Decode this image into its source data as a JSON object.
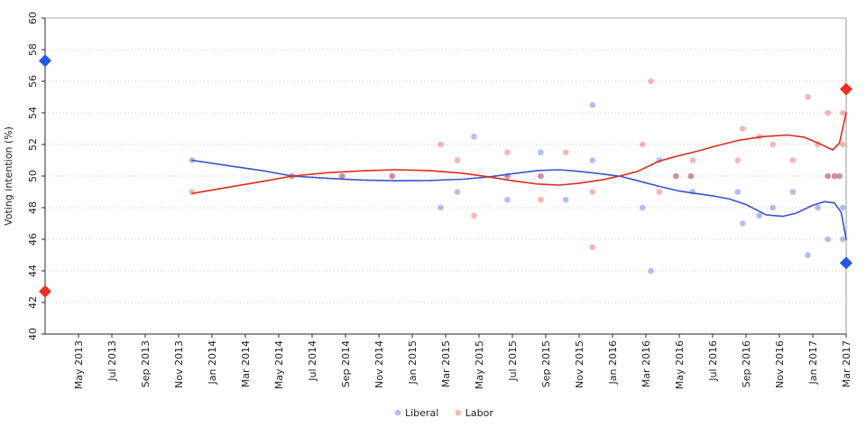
{
  "chart_data": {
    "type": "scatter",
    "title": "",
    "xlabel": "",
    "ylabel": "Voting intention (%)",
    "ylim": [
      40,
      60
    ],
    "yticks": [
      40,
      42,
      44,
      46,
      48,
      50,
      52,
      54,
      56,
      58,
      60
    ],
    "grid": "dotted horizontal",
    "x_unit": "months since Mar 2013",
    "xlim_months": [
      0,
      48
    ],
    "x_ticks": [
      {
        "m": 2,
        "label": "May 2013"
      },
      {
        "m": 4,
        "label": "Jul 2013"
      },
      {
        "m": 6,
        "label": "Sep 2013"
      },
      {
        "m": 8,
        "label": "Nov 2013"
      },
      {
        "m": 10,
        "label": "Jan 2014"
      },
      {
        "m": 12,
        "label": "Mar 2014"
      },
      {
        "m": 14,
        "label": "May 2014"
      },
      {
        "m": 16,
        "label": "Jul 2014"
      },
      {
        "m": 18,
        "label": "Sep 2014"
      },
      {
        "m": 20,
        "label": "Nov 2014"
      },
      {
        "m": 22,
        "label": "Jan 2015"
      },
      {
        "m": 24,
        "label": "Mar 2015"
      },
      {
        "m": 26,
        "label": "May 2015"
      },
      {
        "m": 28,
        "label": "Jul 2015"
      },
      {
        "m": 30,
        "label": "Sep 2015"
      },
      {
        "m": 32,
        "label": "Nov 2015"
      },
      {
        "m": 34,
        "label": "Jan 2016"
      },
      {
        "m": 36,
        "label": "Mar 2016"
      },
      {
        "m": 38,
        "label": "May 2016"
      },
      {
        "m": 40,
        "label": "Jul 2016"
      },
      {
        "m": 42,
        "label": "Sep 2016"
      },
      {
        "m": 44,
        "label": "Nov 2016"
      },
      {
        "m": 46,
        "label": "Jan 2017"
      },
      {
        "m": 48,
        "label": "Mar 2017"
      }
    ],
    "legend": {
      "position": "bottom-center",
      "items": [
        {
          "label": "Liberal",
          "swatch_color": "#4b63de"
        },
        {
          "label": "Labor",
          "swatch_color": "#ef5347"
        }
      ]
    },
    "series": [
      {
        "name": "Liberal",
        "point_color": "#4b63de",
        "point_opacity": 0.42,
        "line_color": "#3a53cf",
        "diamond_color": "#2458ea",
        "points": [
          [
            8.8,
            51
          ],
          [
            14.8,
            50
          ],
          [
            17.8,
            50
          ],
          [
            20.8,
            50
          ],
          [
            23.7,
            48
          ],
          [
            24.7,
            49
          ],
          [
            25.7,
            52.5
          ],
          [
            27.7,
            50
          ],
          [
            27.7,
            48.5
          ],
          [
            29.7,
            51.5
          ],
          [
            29.7,
            50
          ],
          [
            31.2,
            48.5
          ],
          [
            32.8,
            51
          ],
          [
            32.8,
            54.5
          ],
          [
            35.8,
            48
          ],
          [
            36.3,
            44
          ],
          [
            36.8,
            51
          ],
          [
            37.8,
            50
          ],
          [
            38.7,
            50
          ],
          [
            38.8,
            49
          ],
          [
            41.5,
            49
          ],
          [
            41.8,
            47
          ],
          [
            42.8,
            47.5
          ],
          [
            43.6,
            48
          ],
          [
            44.8,
            49
          ],
          [
            45.7,
            45
          ],
          [
            46.3,
            48
          ],
          [
            46.9,
            46
          ],
          [
            46.9,
            50
          ],
          [
            47.3,
            50
          ],
          [
            47.6,
            50
          ],
          [
            47.8,
            46
          ],
          [
            47.8,
            48
          ]
        ],
        "trend": [
          [
            8.8,
            51.0
          ],
          [
            11,
            50.65
          ],
          [
            13,
            50.35
          ],
          [
            14.8,
            50.0
          ],
          [
            17,
            49.85
          ],
          [
            19,
            49.75
          ],
          [
            21,
            49.7
          ],
          [
            23,
            49.72
          ],
          [
            25,
            49.8
          ],
          [
            26.6,
            49.95
          ],
          [
            28,
            50.15
          ],
          [
            29.5,
            50.35
          ],
          [
            30.8,
            50.4
          ],
          [
            32,
            50.3
          ],
          [
            33.5,
            50.12
          ],
          [
            34.5,
            49.98
          ],
          [
            35.5,
            49.7
          ],
          [
            36.8,
            49.35
          ],
          [
            38,
            49.05
          ],
          [
            39,
            48.9
          ],
          [
            40,
            48.75
          ],
          [
            41,
            48.55
          ],
          [
            42,
            48.2
          ],
          [
            43.2,
            47.55
          ],
          [
            44.2,
            47.45
          ],
          [
            45,
            47.65
          ],
          [
            46,
            48.15
          ],
          [
            46.7,
            48.38
          ],
          [
            47.3,
            48.3
          ],
          [
            47.7,
            47.7
          ],
          [
            48,
            46.0
          ]
        ],
        "election_results": [
          {
            "m": 0,
            "value": 57.3
          },
          {
            "m": 48,
            "value": 44.5
          }
        ]
      },
      {
        "name": "Labor",
        "point_color": "#ef5347",
        "point_opacity": 0.42,
        "line_color": "#dd2c20",
        "diamond_color": "#ee3023",
        "points": [
          [
            8.8,
            49
          ],
          [
            14.8,
            50
          ],
          [
            17.8,
            50
          ],
          [
            20.8,
            50
          ],
          [
            23.7,
            52
          ],
          [
            24.7,
            51
          ],
          [
            25.7,
            47.5
          ],
          [
            27.7,
            50
          ],
          [
            27.7,
            51.5
          ],
          [
            29.7,
            48.5
          ],
          [
            29.7,
            50
          ],
          [
            31.2,
            51.5
          ],
          [
            32.8,
            49
          ],
          [
            32.8,
            45.5
          ],
          [
            35.8,
            52
          ],
          [
            36.3,
            56
          ],
          [
            36.8,
            49
          ],
          [
            37.8,
            50
          ],
          [
            38.7,
            50
          ],
          [
            38.8,
            51
          ],
          [
            41.5,
            51
          ],
          [
            41.8,
            53
          ],
          [
            42.8,
            52.5
          ],
          [
            43.6,
            52
          ],
          [
            44.8,
            51
          ],
          [
            45.7,
            55
          ],
          [
            46.3,
            52
          ],
          [
            46.9,
            54
          ],
          [
            46.9,
            50
          ],
          [
            47.3,
            50
          ],
          [
            47.6,
            50
          ],
          [
            47.8,
            54
          ],
          [
            47.8,
            52
          ]
        ],
        "trend": [
          [
            8.8,
            48.9
          ],
          [
            11,
            49.3
          ],
          [
            13,
            49.65
          ],
          [
            14.8,
            50.0
          ],
          [
            17,
            50.22
          ],
          [
            19,
            50.33
          ],
          [
            21,
            50.4
          ],
          [
            23,
            50.35
          ],
          [
            25,
            50.18
          ],
          [
            26.6,
            49.95
          ],
          [
            28,
            49.7
          ],
          [
            29.5,
            49.5
          ],
          [
            30.8,
            49.42
          ],
          [
            32,
            49.55
          ],
          [
            33.5,
            49.78
          ],
          [
            34.5,
            50.02
          ],
          [
            35.5,
            50.3
          ],
          [
            36.8,
            50.95
          ],
          [
            38,
            51.3
          ],
          [
            39,
            51.55
          ],
          [
            40,
            51.85
          ],
          [
            41.5,
            52.25
          ],
          [
            43,
            52.5
          ],
          [
            44.5,
            52.6
          ],
          [
            45.5,
            52.45
          ],
          [
            46.3,
            52.1
          ],
          [
            47.2,
            51.65
          ],
          [
            47.6,
            52.1
          ],
          [
            48,
            54.0
          ]
        ],
        "election_results": [
          {
            "m": 0,
            "value": 42.7
          },
          {
            "m": 48,
            "value": 55.5
          }
        ]
      }
    ],
    "colors": {
      "grid_dotted": "#c8c8c8",
      "panel_border": "#aaaaaa",
      "axis": "#2a2a2a",
      "text": "#222222"
    }
  }
}
